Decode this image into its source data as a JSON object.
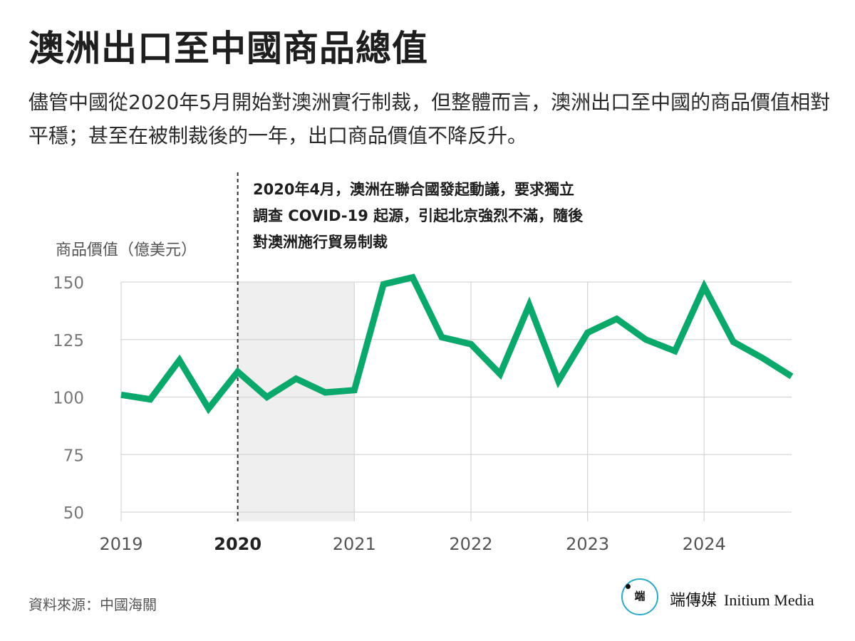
{
  "title": "澳洲出口至中國商品總值",
  "subtitle": "儘管中國從2020年5月開始對澳洲實行制裁，但整體而言，澳洲出口至中國的商品價值相對平穩；甚至在被制裁後的一年，出口商品價值不降反升。",
  "source": "資料來源：中國海關",
  "brand": {
    "logo_text": "端",
    "name_zh": "端傳媒",
    "name_en": "Initium Media"
  },
  "colors": {
    "line": "#0aa86a",
    "shade": "#efefef",
    "grid": "#d6d6d6",
    "annotation_line": "#333333"
  },
  "chart_data": {
    "type": "line",
    "ylabel": "商品價值（億美元）",
    "ylim": [
      50,
      150
    ],
    "yticks": [
      50,
      75,
      100,
      125,
      150
    ],
    "xlim": [
      2019,
      2024.75
    ],
    "xticks": [
      {
        "value": 2019,
        "label": "2019",
        "bold": false
      },
      {
        "value": 2020,
        "label": "2020",
        "bold": true
      },
      {
        "value": 2021,
        "label": "2021",
        "bold": false
      },
      {
        "value": 2022,
        "label": "2022",
        "bold": false
      },
      {
        "value": 2023,
        "label": "2023",
        "bold": false
      },
      {
        "value": 2024,
        "label": "2024",
        "bold": false
      }
    ],
    "grid": true,
    "shaded_range": [
      2020,
      2021
    ],
    "annotation": {
      "x": 2020,
      "lines": [
        "2020年4月，澳洲在聯合國發起動議，要求獨立",
        "調查 COVID-19 起源，引起北京強烈不滿，隨後",
        "對澳洲施行貿易制裁"
      ]
    },
    "series": [
      {
        "values": [
          {
            "x": 2019.0,
            "y": 101
          },
          {
            "x": 2019.25,
            "y": 99
          },
          {
            "x": 2019.5,
            "y": 116
          },
          {
            "x": 2019.75,
            "y": 95
          },
          {
            "x": 2020.0,
            "y": 111
          },
          {
            "x": 2020.25,
            "y": 100
          },
          {
            "x": 2020.5,
            "y": 108
          },
          {
            "x": 2020.75,
            "y": 102
          },
          {
            "x": 2021.0,
            "y": 103
          },
          {
            "x": 2021.25,
            "y": 149
          },
          {
            "x": 2021.5,
            "y": 152
          },
          {
            "x": 2021.75,
            "y": 126
          },
          {
            "x": 2022.0,
            "y": 123
          },
          {
            "x": 2022.25,
            "y": 110
          },
          {
            "x": 2022.5,
            "y": 140
          },
          {
            "x": 2022.75,
            "y": 107
          },
          {
            "x": 2023.0,
            "y": 128
          },
          {
            "x": 2023.25,
            "y": 134
          },
          {
            "x": 2023.5,
            "y": 125
          },
          {
            "x": 2023.75,
            "y": 120
          },
          {
            "x": 2024.0,
            "y": 148
          },
          {
            "x": 2024.25,
            "y": 124
          },
          {
            "x": 2024.5,
            "y": 117
          },
          {
            "x": 2024.75,
            "y": 109
          }
        ]
      }
    ]
  }
}
